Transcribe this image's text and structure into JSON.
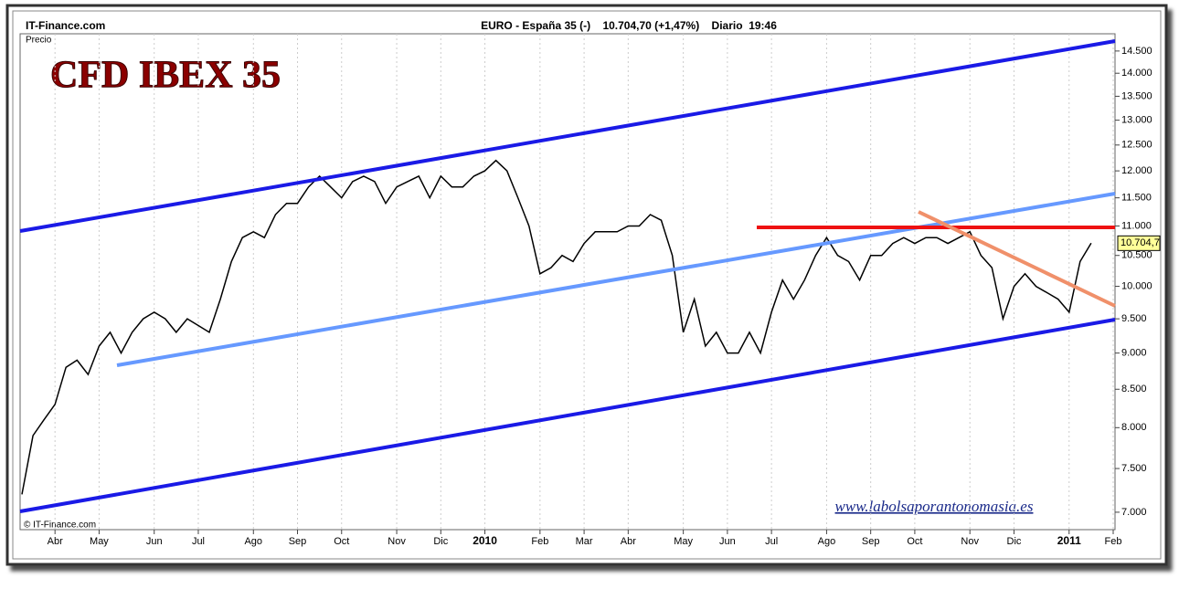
{
  "chart_data": {
    "type": "line",
    "site": "IT-Finance.com",
    "header": "EURO - España 35 (-)    10.704,70 (+1,47%)    Diario  19:46",
    "axis_label": "Precio",
    "title": "CFD IBEX 35",
    "copyright": "© IT-Finance.com",
    "watermark": "www.labolsaporantonomasia.es",
    "log_scale": true,
    "ylim": [
      6810,
      14900
    ],
    "yticks": [
      {
        "value": 7000,
        "label": "7.000"
      },
      {
        "value": 7500,
        "label": "7.500"
      },
      {
        "value": 8000,
        "label": "8.000"
      },
      {
        "value": 8500,
        "label": "8.500"
      },
      {
        "value": 9000,
        "label": "9.000"
      },
      {
        "value": 9500,
        "label": "9.500"
      },
      {
        "value": 10000,
        "label": "10.000"
      },
      {
        "value": 10500,
        "label": "10.500"
      },
      {
        "value": 11000,
        "label": "11.000"
      },
      {
        "value": 11500,
        "label": "11.500"
      },
      {
        "value": 12000,
        "label": "12.000"
      },
      {
        "value": 12500,
        "label": "12.500"
      },
      {
        "value": 13000,
        "label": "13.000"
      },
      {
        "value": 13500,
        "label": "13.500"
      },
      {
        "value": 14000,
        "label": "14.000"
      },
      {
        "value": 14500,
        "label": "14.500"
      }
    ],
    "last_price": {
      "value": 10704.7,
      "label": "10.704,7"
    },
    "categories": [
      null,
      null,
      null,
      "Abr",
      null,
      null,
      null,
      "May",
      null,
      null,
      null,
      null,
      "Jun",
      null,
      null,
      null,
      "Jul",
      null,
      null,
      null,
      null,
      "Ago",
      null,
      null,
      null,
      "Sep",
      null,
      null,
      null,
      "Oct",
      null,
      null,
      null,
      null,
      "Nov",
      null,
      null,
      null,
      "Dic",
      null,
      null,
      null,
      "2010",
      null,
      null,
      null,
      null,
      "Feb",
      null,
      null,
      null,
      "Mar",
      null,
      null,
      null,
      "Abr",
      null,
      null,
      null,
      null,
      "May",
      null,
      null,
      null,
      "Jun",
      null,
      null,
      null,
      "Jul",
      null,
      null,
      null,
      null,
      "Ago",
      null,
      null,
      null,
      "Sep",
      null,
      null,
      null,
      "Oct",
      null,
      null,
      null,
      null,
      "Nov",
      null,
      null,
      null,
      "Dic",
      null,
      null,
      null,
      null,
      "2011",
      null,
      null,
      null,
      "Feb"
    ],
    "series": [
      {
        "name": "Precio",
        "color": "#000000",
        "values": [
          7200,
          7900,
          8100,
          8300,
          8800,
          8900,
          8700,
          9100,
          9300,
          9000,
          9300,
          9500,
          9600,
          9500,
          9300,
          9500,
          9400,
          9300,
          9800,
          10400,
          10800,
          10900,
          10800,
          11200,
          11400,
          11400,
          11700,
          11900,
          11700,
          11500,
          11800,
          11900,
          11800,
          11400,
          11700,
          11800,
          11900,
          11500,
          11900,
          11700,
          11700,
          11900,
          12000,
          12200,
          12000,
          11500,
          11000,
          10200,
          10300,
          10500,
          10400,
          10700,
          10900,
          10900,
          10900,
          11000,
          11000,
          11200,
          11100,
          10500,
          9300,
          9800,
          9100,
          9300,
          9000,
          9000,
          9300,
          9000,
          9600,
          10100,
          9800,
          10100,
          10500,
          10800,
          10500,
          10400,
          10100,
          10500,
          10500,
          10700,
          10800,
          10700,
          10800,
          10800,
          10700,
          10800,
          10900,
          10500,
          10300,
          9500,
          10000,
          10200,
          10000,
          9900,
          9800,
          9600,
          10400,
          10704.7,
          null,
          null
        ]
      }
    ]
  }
}
